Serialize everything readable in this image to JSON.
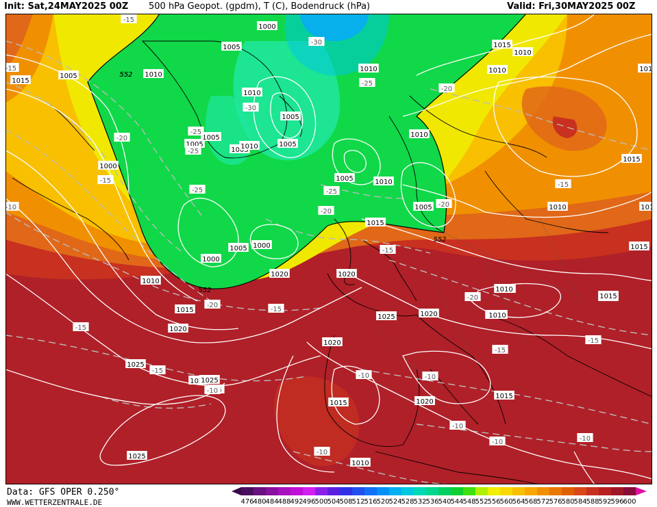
{
  "header": {
    "init": "Init: Sat,24MAY2025 00Z",
    "title": "500 hPa Geopot. (gpdm), T (C), Bodendruck (hPa)",
    "valid": "Valid: Fri,30MAY2025 00Z"
  },
  "footer": {
    "data_source": "Data: GFS OPER 0.250°",
    "website": "WWW.WETTERZENTRALE.DE"
  },
  "colorbar": {
    "labels": [
      "476",
      "480",
      "484",
      "488",
      "492",
      "496",
      "500",
      "504",
      "508",
      "512",
      "516",
      "520",
      "524",
      "528",
      "532",
      "536",
      "540",
      "544",
      "548",
      "552",
      "556",
      "560",
      "564",
      "568",
      "572",
      "576",
      "580",
      "584",
      "588",
      "592",
      "596",
      "600"
    ],
    "colors": [
      "#4b0f5f",
      "#6a1080",
      "#8a10a0",
      "#a810c0",
      "#c010d8",
      "#d020f0",
      "#8a20e8",
      "#5a20e0",
      "#3030e8",
      "#2050f0",
      "#1070f8",
      "#0090f8",
      "#00b0f0",
      "#00c8e0",
      "#00d8b8",
      "#00d890",
      "#00d060",
      "#10d030",
      "#40e010",
      "#b0f000",
      "#f0f000",
      "#f8d800",
      "#f8c000",
      "#f8a800",
      "#f09000",
      "#e87800",
      "#e06000",
      "#d84818",
      "#c83020",
      "#b82020",
      "#a01828",
      "#880c38"
    ],
    "lower_arrow_color": "#3a0a4a",
    "upper_arrow_color": "#e010a0"
  },
  "map_colors": {
    "cold_core": "#10d848",
    "cyan_core": "#20e8a0",
    "blue_core": "#1090f8",
    "yellow_band": "#f0e800",
    "gold_band": "#f8c000",
    "orange_band": "#f09000",
    "dark_orange": "#e06818",
    "red_band": "#c83020",
    "deep_red": "#b02028",
    "coast": "#000000",
    "isobar": "#ffffff",
    "isotherm": "#c0c0c0"
  },
  "isobar_labels": [
    "1000",
    "1005",
    "1010",
    "1015",
    "1020",
    "1025",
    "1000",
    "1005",
    "1005",
    "1005",
    "1005",
    "1005",
    "1010",
    "1010",
    "1015",
    "1010",
    "1005",
    "1005",
    "1010",
    "1010",
    "1015",
    "1015",
    "1020",
    "1010",
    "1005",
    "1010",
    "1015",
    "1015",
    "1015",
    "1010",
    "1005",
    "1000",
    "1000",
    "1005",
    "1010",
    "1015",
    "1020",
    "1025",
    "1025",
    "1020",
    "1015",
    "1020",
    "1025",
    "1015",
    "1020",
    "1015",
    "1010",
    "1010",
    "1010",
    "1015",
    "1015",
    "1025",
    "1010",
    "1020",
    "1010"
  ],
  "isotherm_labels": [
    "-15",
    "-30",
    "-25",
    "-20",
    "-15",
    "-10",
    "-25",
    "-30",
    "-25",
    "-20",
    "-25",
    "-15",
    "-20",
    "-20",
    "-25",
    "-15",
    "-20",
    "-15",
    "-15",
    "-10",
    "-15",
    "-10",
    "-15",
    "-10",
    "-10",
    "-10",
    "-10",
    "-15",
    "-15",
    "-20",
    "-15",
    "-10"
  ],
  "height_labels": [
    "552",
    "552",
    "552",
    "552"
  ]
}
